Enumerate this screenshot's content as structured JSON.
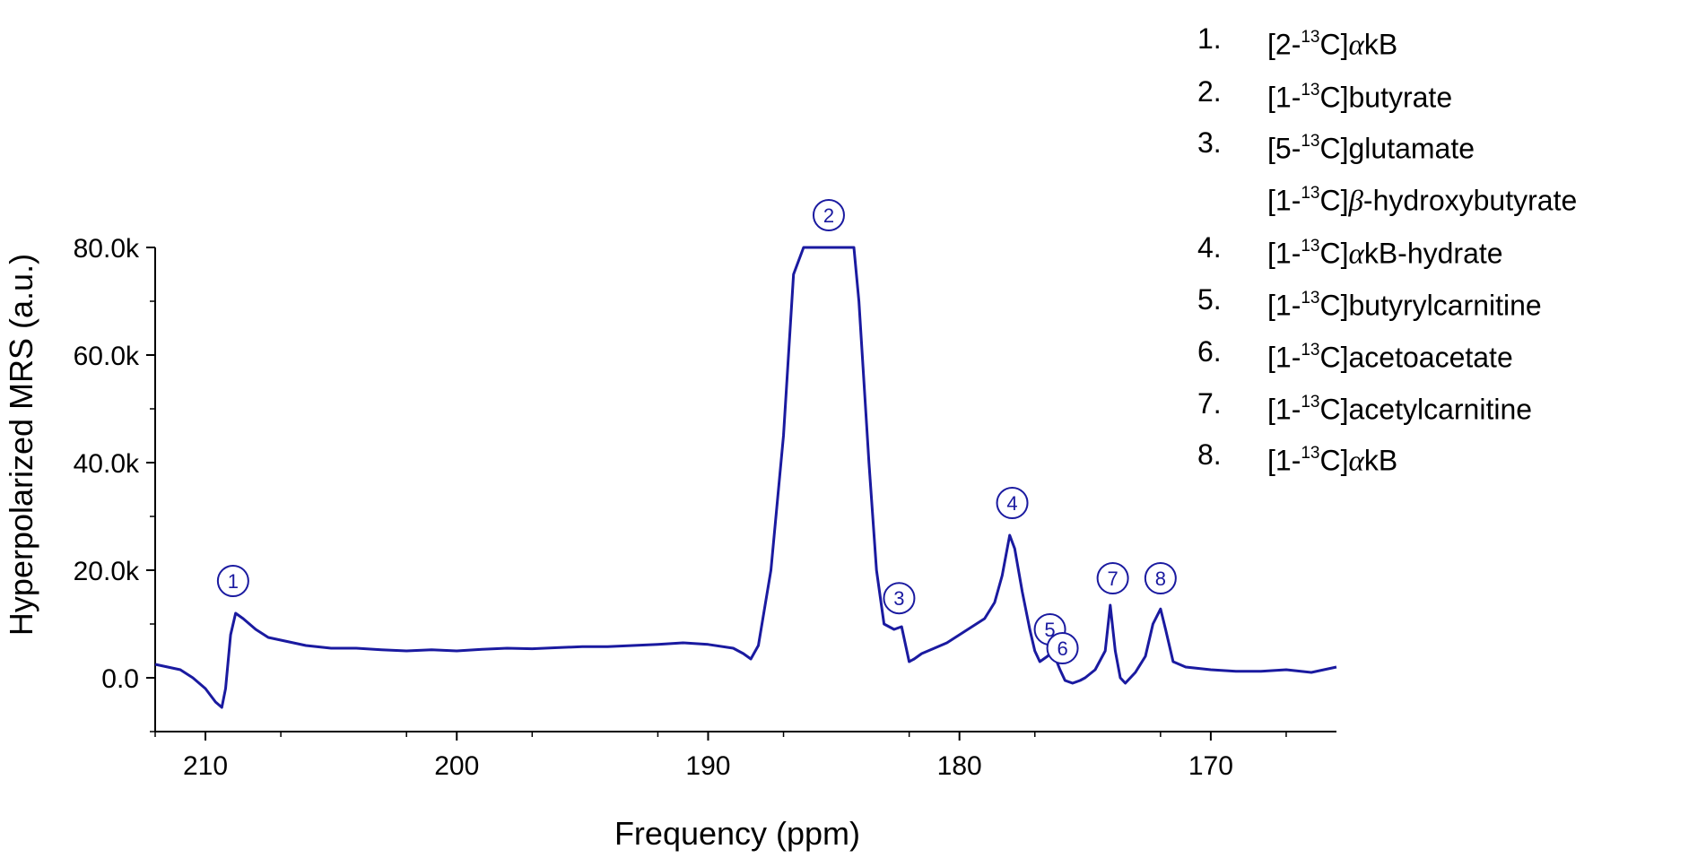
{
  "chart_data": {
    "type": "line",
    "title": "",
    "xlabel": "Frequency (ppm)",
    "ylabel": "Hyperpolarized MRS (a.u.)",
    "xlim": [
      212,
      165
    ],
    "ylim": [
      -10000,
      80000
    ],
    "x_reversed": true,
    "grid": false,
    "line_color": "#1a1aa0",
    "x_ticks": [
      210,
      200,
      190,
      180,
      170
    ],
    "x_tick_labels": [
      "210",
      "200",
      "190",
      "180",
      "170"
    ],
    "y_ticks": [
      0,
      20000,
      40000,
      60000,
      80000
    ],
    "y_tick_labels": [
      "0.0",
      "20.0k",
      "40.0k",
      "60.0k",
      "80.0k"
    ],
    "series": [
      {
        "x": [
          212.0,
          211.0,
          210.5,
          210.0,
          209.6,
          209.35,
          209.2,
          209.0,
          208.8,
          208.5,
          208.0,
          207.5,
          207.0,
          206.0,
          205.0,
          204.0,
          203.0,
          202.0,
          201.0,
          200.0,
          199.0,
          198.0,
          197.0,
          196.0,
          195.0,
          194.0,
          193.0,
          192.0,
          191.0,
          190.0,
          189.0,
          188.6,
          188.3,
          188.0,
          187.5,
          187.0,
          186.6,
          186.2,
          186.0,
          185.0,
          184.2,
          184.0,
          183.6,
          183.3,
          183.0,
          182.6,
          182.3,
          182.0,
          181.8,
          181.5,
          181.0,
          180.5,
          180.0,
          179.5,
          179.0,
          178.6,
          178.3,
          178.0,
          177.8,
          177.5,
          177.2,
          177.0,
          176.8,
          176.5,
          176.3,
          176.0,
          175.8,
          175.5,
          175.2,
          175.0,
          174.6,
          174.2,
          174.0,
          173.8,
          173.6,
          173.4,
          173.0,
          172.6,
          172.3,
          172.0,
          171.8,
          171.5,
          171.0,
          170.0,
          169.0,
          168.0,
          167.0,
          166.0,
          165.0
        ],
        "y": [
          2500,
          1500,
          0,
          -2000,
          -4500,
          -5500,
          -2000,
          8000,
          12000,
          11000,
          9000,
          7500,
          7000,
          6000,
          5500,
          5500,
          5200,
          5000,
          5200,
          5000,
          5300,
          5500,
          5400,
          5600,
          5800,
          5800,
          6000,
          6200,
          6500,
          6200,
          5500,
          4500,
          3500,
          6000,
          20000,
          45000,
          75000,
          80000,
          80000,
          80000,
          80000,
          70000,
          40000,
          20000,
          10000,
          9000,
          9500,
          3000,
          3500,
          4500,
          5500,
          6500,
          8000,
          9500,
          11000,
          14000,
          19000,
          26500,
          24000,
          16000,
          9000,
          5000,
          3000,
          4000,
          5000,
          1500,
          -500,
          -1000,
          -500,
          0,
          1500,
          5000,
          13500,
          5000,
          0,
          -1000,
          1000,
          4000,
          10000,
          12800,
          9000,
          3000,
          2000,
          1500,
          1200,
          1200,
          1500,
          1000,
          2000
        ]
      }
    ],
    "peaks": [
      {
        "label": "1",
        "x": 208.9,
        "y": 18000
      },
      {
        "label": "2",
        "x": 185.2,
        "y": 86000
      },
      {
        "label": "3",
        "x": 182.4,
        "y": 14800
      },
      {
        "label": "4",
        "x": 177.9,
        "y": 32500
      },
      {
        "label": "5",
        "x": 176.4,
        "y": 9000
      },
      {
        "label": "6",
        "x": 175.9,
        "y": 5500
      },
      {
        "label": "7",
        "x": 173.9,
        "y": 18500
      },
      {
        "label": "8",
        "x": 172.0,
        "y": 18500
      }
    ]
  },
  "legend": {
    "items": [
      {
        "num": "1.",
        "pre": "[2-",
        "sup": "13",
        "post": "C]",
        "greek": "α",
        "tail": "kB"
      },
      {
        "num": "2.",
        "pre": "[1-",
        "sup": "13",
        "post": "C]butyrate",
        "greek": "",
        "tail": ""
      },
      {
        "num": "3.",
        "pre": "[5-",
        "sup": "13",
        "post": "C]glutamate",
        "greek": "",
        "tail": ""
      },
      {
        "num": "",
        "pre": "[1-",
        "sup": "13",
        "post": "C]",
        "greek": "β",
        "tail": "-hydroxybutyrate"
      },
      {
        "num": "4.",
        "pre": "[1-",
        "sup": "13",
        "post": "C]",
        "greek": "α",
        "tail": "kB-hydrate"
      },
      {
        "num": "5.",
        "pre": "[1-",
        "sup": "13",
        "post": "C]butyrylcarnitine",
        "greek": "",
        "tail": ""
      },
      {
        "num": "6.",
        "pre": "[1-",
        "sup": "13",
        "post": "C]acetoacetate",
        "greek": "",
        "tail": ""
      },
      {
        "num": "7.",
        "pre": "[1-",
        "sup": "13",
        "post": "C]acetylcarnitine",
        "greek": "",
        "tail": ""
      },
      {
        "num": "8.",
        "pre": "[1-",
        "sup": "13",
        "post": "C]",
        "greek": "α",
        "tail": "kB"
      }
    ]
  }
}
